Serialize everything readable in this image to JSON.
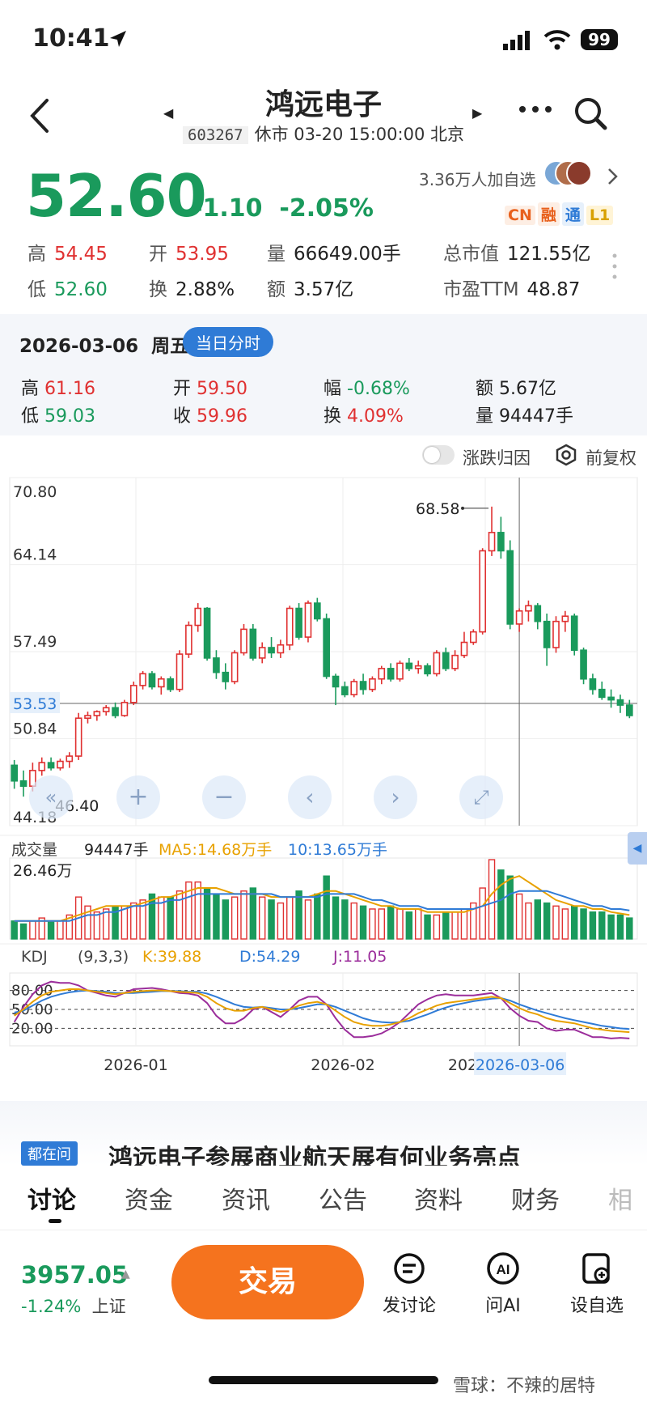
{
  "status_bar": {
    "time": "10:41",
    "battery": "99"
  },
  "header": {
    "title": "鸿远电子",
    "code": "603267",
    "market_status": "休市 03-20 15:00:00 北京"
  },
  "quote": {
    "price": "52.60",
    "change": "-1.10",
    "change_pct": "-2.05%",
    "watchers": "3.36万人加自选",
    "badges": [
      "CN",
      "融",
      "通",
      "L1"
    ],
    "high_label": "高",
    "high": "54.45",
    "open_label": "开",
    "open": "53.95",
    "volume_label": "量",
    "volume": "66649.00手",
    "mktcap_label": "总市值",
    "mktcap": "121.55亿",
    "low_label": "低",
    "low": "52.60",
    "turnover_label": "换",
    "turnover": "2.88%",
    "amount_label": "额",
    "amount": "3.57亿",
    "pe_label": "市盈TTM",
    "pe": "48.87"
  },
  "day_panel": {
    "date": "2026-03-06",
    "weekday": "周五",
    "badge": "当日分时",
    "high_label": "高",
    "high": "61.16",
    "open_label": "开",
    "open": "59.50",
    "range_label": "幅",
    "range": "-0.68%",
    "amount_label": "额",
    "amount": "5.67亿",
    "low_label": "低",
    "low": "59.03",
    "close_label": "收",
    "close": "59.96",
    "turnover_label": "换",
    "turnover": "4.09%",
    "volume_label": "量",
    "volume": "94447手"
  },
  "chart_controls": {
    "attribution_toggle": "涨跌归因",
    "adjust_label": "前复权"
  },
  "chart_data": {
    "type": "candlestick",
    "y_ticks": [
      "70.80",
      "64.14",
      "57.49",
      "50.84",
      "44.18"
    ],
    "ylim": [
      44.18,
      70.8
    ],
    "crosshair_value": "53.53",
    "crosshair_value_num": 53.53,
    "max_label": "68.58",
    "min_label": "46.40",
    "x_labels": [
      "2026-01",
      "2026-02",
      "202",
      "2026-03-06"
    ],
    "candles": [
      [
        48.8,
        49.2,
        47.0,
        47.6
      ],
      [
        47.6,
        48.4,
        46.4,
        47.2
      ],
      [
        47.2,
        49.0,
        46.8,
        48.4
      ],
      [
        48.4,
        49.4,
        48.0,
        49.0
      ],
      [
        49.0,
        49.4,
        48.4,
        48.6
      ],
      [
        48.6,
        49.3,
        48.4,
        49.1
      ],
      [
        49.1,
        49.8,
        48.6,
        49.5
      ],
      [
        49.5,
        52.8,
        49.2,
        52.4
      ],
      [
        52.4,
        52.9,
        52.0,
        52.6
      ],
      [
        52.6,
        53.0,
        52.2,
        52.9
      ],
      [
        52.9,
        53.4,
        52.6,
        53.2
      ],
      [
        53.2,
        53.6,
        52.4,
        52.6
      ],
      [
        52.6,
        53.8,
        52.5,
        53.6
      ],
      [
        53.6,
        55.2,
        53.4,
        54.9
      ],
      [
        54.9,
        56.0,
        54.6,
        55.8
      ],
      [
        55.8,
        56.0,
        54.6,
        54.8
      ],
      [
        54.8,
        55.6,
        54.2,
        55.4
      ],
      [
        55.4,
        55.6,
        54.4,
        54.6
      ],
      [
        54.6,
        57.6,
        54.4,
        57.3
      ],
      [
        57.3,
        59.8,
        57.0,
        59.5
      ],
      [
        59.5,
        61.2,
        59.0,
        60.8
      ],
      [
        60.8,
        60.9,
        56.8,
        57.0
      ],
      [
        57.0,
        57.6,
        55.4,
        55.9
      ],
      [
        55.9,
        56.6,
        54.6,
        55.2
      ],
      [
        55.2,
        57.6,
        55.0,
        57.4
      ],
      [
        57.4,
        59.6,
        57.2,
        59.2
      ],
      [
        59.2,
        59.6,
        56.8,
        57.0
      ],
      [
        57.0,
        58.2,
        56.6,
        57.8
      ],
      [
        57.8,
        58.6,
        57.0,
        57.4
      ],
      [
        57.4,
        58.4,
        57.0,
        58.0
      ],
      [
        58.0,
        61.0,
        57.6,
        60.8
      ],
      [
        60.8,
        61.2,
        58.4,
        58.6
      ],
      [
        58.6,
        61.4,
        58.2,
        61.2
      ],
      [
        61.2,
        61.6,
        59.8,
        60.0
      ],
      [
        60.0,
        60.4,
        55.4,
        55.6
      ],
      [
        55.6,
        55.8,
        53.4,
        54.8
      ],
      [
        54.8,
        55.2,
        54.0,
        54.2
      ],
      [
        54.2,
        55.4,
        54.0,
        55.2
      ],
      [
        55.2,
        55.8,
        54.2,
        54.6
      ],
      [
        54.6,
        55.6,
        54.4,
        55.4
      ],
      [
        55.4,
        56.4,
        55.0,
        56.2
      ],
      [
        56.2,
        56.6,
        55.2,
        55.4
      ],
      [
        55.4,
        56.8,
        55.2,
        56.6
      ],
      [
        56.6,
        57.0,
        56.0,
        56.2
      ],
      [
        56.2,
        56.8,
        55.8,
        56.4
      ],
      [
        56.4,
        56.6,
        55.6,
        55.8
      ],
      [
        55.8,
        57.6,
        55.6,
        57.4
      ],
      [
        57.4,
        57.8,
        56.0,
        56.2
      ],
      [
        56.2,
        57.6,
        56.0,
        57.2
      ],
      [
        57.2,
        59.0,
        57.0,
        58.2
      ],
      [
        58.2,
        59.2,
        58.0,
        59.0
      ],
      [
        59.0,
        65.4,
        58.8,
        65.2
      ],
      [
        65.2,
        68.58,
        64.8,
        66.6
      ],
      [
        66.6,
        67.8,
        64.6,
        65.2
      ],
      [
        65.2,
        66.0,
        59.2,
        59.6
      ],
      [
        59.6,
        60.8,
        59.0,
        60.6
      ],
      [
        60.6,
        61.4,
        59.8,
        61.0
      ],
      [
        61.0,
        61.2,
        59.2,
        59.8
      ],
      [
        59.8,
        60.4,
        56.4,
        57.8
      ],
      [
        57.8,
        60.2,
        57.4,
        59.8
      ],
      [
        59.8,
        60.6,
        59.0,
        60.2
      ],
      [
        60.2,
        60.4,
        57.2,
        57.6
      ],
      [
        57.6,
        57.8,
        55.0,
        55.4
      ],
      [
        55.4,
        55.8,
        54.2,
        54.6
      ],
      [
        54.6,
        55.2,
        53.8,
        54.0
      ],
      [
        54.0,
        54.6,
        53.2,
        53.8
      ],
      [
        53.8,
        54.2,
        52.8,
        53.4
      ],
      [
        53.4,
        53.8,
        52.4,
        52.6
      ]
    ],
    "volume": {
      "label": "成交量",
      "current": "94447手",
      "ma5": "MA5:14.68万手",
      "ma10": "10:13.65万手",
      "max_label": "26.46万",
      "max": 26.46,
      "values": [
        6,
        5,
        6,
        7,
        6,
        6,
        8,
        14,
        11,
        9,
        10,
        11,
        11,
        12,
        13,
        15,
        14,
        14,
        16,
        19,
        19,
        17,
        15,
        13,
        14,
        16,
        17,
        14,
        13,
        12,
        14,
        16,
        13,
        15,
        21,
        14,
        13,
        12,
        11,
        10,
        10,
        11,
        10,
        9,
        10,
        8,
        8,
        9,
        9,
        10,
        12,
        17,
        26.46,
        23,
        21,
        15,
        12,
        13,
        12,
        11,
        10,
        11,
        10,
        9,
        9,
        8,
        8,
        7
      ],
      "ma5_values": [
        6,
        6,
        6,
        6,
        6,
        6,
        7,
        8,
        9,
        10,
        11,
        11,
        11,
        11,
        12,
        13,
        14,
        14,
        15,
        16,
        17,
        17,
        17,
        16,
        15,
        15,
        15,
        15,
        14,
        14,
        14,
        14,
        14,
        15,
        16,
        16,
        15,
        14,
        13,
        12,
        11,
        11,
        10,
        10,
        10,
        9,
        9,
        9,
        9,
        9,
        10,
        11,
        15,
        18,
        20,
        21,
        19,
        17,
        15,
        13,
        12,
        11,
        11,
        10,
        10,
        9,
        8.5,
        8
      ],
      "ma10_values": [
        6,
        6,
        6,
        6,
        6,
        6,
        6,
        7,
        8,
        8,
        9,
        9,
        10,
        11,
        11,
        12,
        12,
        13,
        13,
        14,
        15,
        15,
        15,
        15,
        15,
        15,
        15,
        15,
        15,
        14,
        14,
        14,
        14,
        14,
        15,
        15,
        15,
        15,
        14,
        13,
        13,
        12,
        11,
        11,
        11,
        10,
        10,
        10,
        10,
        10,
        10,
        11,
        12,
        13,
        15,
        16,
        16,
        16,
        16,
        15,
        14,
        13,
        12,
        11,
        11,
        10,
        10,
        9.5
      ]
    },
    "kdj": {
      "label": "KDJ",
      "params": "(9,3,3)",
      "k_label": "K:39.88",
      "d_label": "D:54.29",
      "j_label": "J:11.05",
      "y_ticks": [
        "80.00",
        "50.00",
        "20.00"
      ],
      "k": [
        40,
        50,
        62,
        72,
        78,
        80,
        82,
        82,
        80,
        78,
        76,
        74,
        76,
        78,
        79,
        80,
        80,
        79,
        78,
        77,
        76,
        70,
        60,
        52,
        48,
        48,
        52,
        54,
        50,
        46,
        50,
        56,
        60,
        62,
        58,
        48,
        38,
        30,
        26,
        24,
        24,
        26,
        30,
        36,
        44,
        50,
        56,
        60,
        62,
        64,
        66,
        68,
        70,
        68,
        60,
        52,
        46,
        42,
        36,
        32,
        30,
        28,
        24,
        20,
        18,
        16,
        15,
        14
      ],
      "d": [
        45,
        48,
        56,
        64,
        70,
        74,
        77,
        79,
        80,
        79,
        78,
        76,
        76,
        76,
        77,
        78,
        79,
        79,
        79,
        78,
        78,
        75,
        70,
        64,
        58,
        54,
        53,
        54,
        52,
        50,
        50,
        52,
        55,
        58,
        58,
        54,
        48,
        42,
        36,
        32,
        30,
        29,
        30,
        32,
        37,
        42,
        48,
        53,
        57,
        60,
        63,
        65,
        67,
        68,
        64,
        58,
        53,
        48,
        44,
        40,
        36,
        33,
        30,
        27,
        24,
        22,
        20,
        19
      ],
      "j": [
        30,
        54,
        74,
        88,
        94,
        92,
        92,
        88,
        80,
        76,
        72,
        70,
        76,
        82,
        83,
        84,
        82,
        79,
        76,
        75,
        72,
        60,
        40,
        28,
        28,
        36,
        50,
        54,
        46,
        38,
        50,
        64,
        70,
        70,
        58,
        36,
        18,
        6,
        6,
        8,
        12,
        20,
        30,
        44,
        58,
        66,
        72,
        74,
        72,
        72,
        72,
        74,
        76,
        68,
        52,
        40,
        32,
        30,
        20,
        16,
        18,
        18,
        12,
        6,
        6,
        4,
        5,
        4
      ]
    }
  },
  "news": {
    "tag": "都在问",
    "headline": "鸿远电子参展商业航天展有何业务亮点"
  },
  "tabs": [
    "讨论",
    "资金",
    "资讯",
    "公告",
    "资料",
    "财务",
    "相"
  ],
  "bottom_bar": {
    "index_value": "3957.05",
    "index_change": "-1.24%",
    "index_name": "上证",
    "trade_label": "交易",
    "post_label": "发讨论",
    "ai_label": "问AI",
    "ai_icon_text": "AI",
    "watch_label": "设自选"
  },
  "watermark": "雪球：不辣的居特"
}
